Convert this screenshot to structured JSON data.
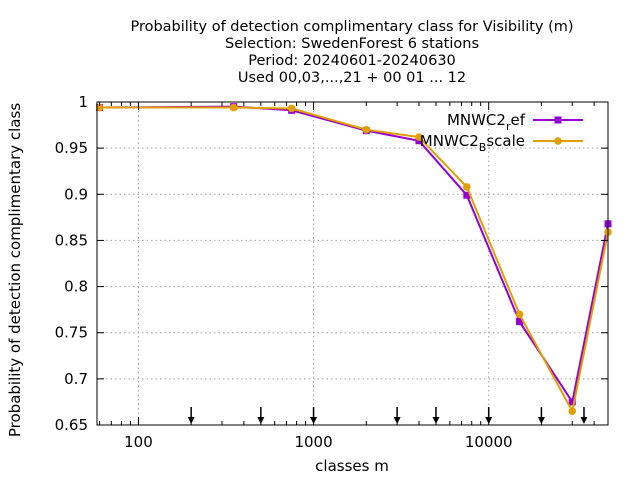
{
  "chart_data": {
    "type": "line",
    "title_lines": [
      "Probability of detection complimentary class  for Visibility (m)",
      "Selection: SwedenForest       6 stations",
      "Period: 20240601-20240630",
      "Used 00,03,...,21 + 00 01 ... 12"
    ],
    "xlabel": "classes m",
    "ylabel": "Probability of detection complimentary class",
    "x_scale": "log",
    "xlim": [
      58,
      48000
    ],
    "ylim": [
      0.65,
      1.0
    ],
    "x_ticks": [
      {
        "value": 100,
        "label": "100"
      },
      {
        "value": 1000,
        "label": "1000"
      },
      {
        "value": 10000,
        "label": "10000"
      }
    ],
    "y_ticks": [
      {
        "value": 0.65,
        "label": "0.65"
      },
      {
        "value": 0.7,
        "label": "0.7"
      },
      {
        "value": 0.75,
        "label": "0.75"
      },
      {
        "value": 0.8,
        "label": "0.8"
      },
      {
        "value": 0.85,
        "label": "0.85"
      },
      {
        "value": 0.9,
        "label": "0.9"
      },
      {
        "value": 0.95,
        "label": "0.95"
      },
      {
        "value": 1.0,
        "label": "1"
      }
    ],
    "grid": true,
    "legend_position": "top-right",
    "class_boundary_arrows": [
      200,
      500,
      1000,
      3000,
      5000,
      10000,
      20000,
      35000
    ],
    "series": [
      {
        "name": "MNWC2_ref",
        "legend_main": "MNWC2",
        "legend_sub": "r",
        "legend_rest": "ef",
        "color": "#9400d3",
        "x": [
          60,
          350,
          750,
          2000,
          4000,
          7500,
          15000,
          30000,
          48000
        ],
        "y": [
          0.994,
          0.995,
          0.991,
          0.969,
          0.958,
          0.899,
          0.762,
          0.675,
          0.868
        ]
      },
      {
        "name": "MNWC2_Bscale",
        "legend_main": "MNWC2",
        "legend_sub": "B",
        "legend_rest": "scale",
        "color": "#e0a000",
        "x": [
          60,
          350,
          750,
          2000,
          4000,
          7500,
          15000,
          30000,
          48000
        ],
        "y": [
          0.994,
          0.994,
          0.993,
          0.97,
          0.962,
          0.908,
          0.77,
          0.665,
          0.859
        ]
      }
    ]
  }
}
